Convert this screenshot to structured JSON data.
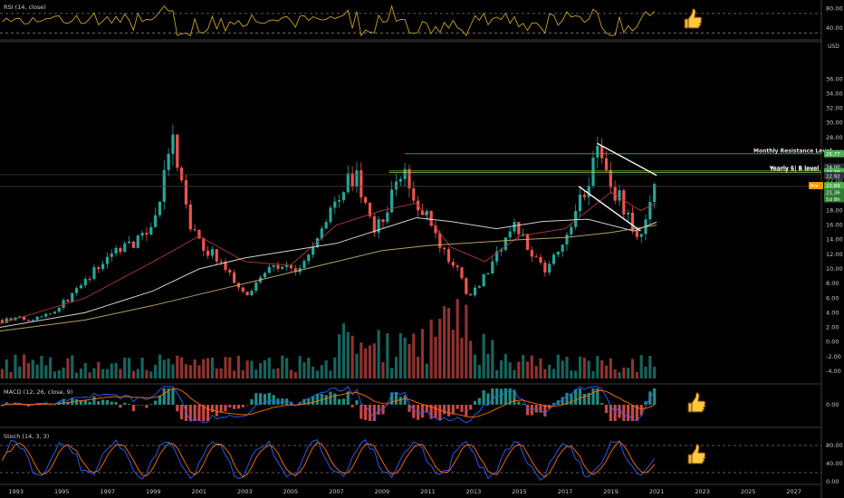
{
  "indicators": {
    "rsi_label": "RSI (14, close)",
    "macd_label": "MACD (12, 26, close, 9)",
    "stoch_label": "Stoch (14, 3, 3)"
  },
  "icons": {
    "thumbs": "thumbs-up-icon"
  },
  "colors": {
    "up": "#26a69a",
    "down": "#ef5350",
    "rsi": "#c9a227",
    "ma_red": "#b33a3a",
    "ma_white": "#e6e6e6",
    "ma_tan": "#c8b070",
    "macd": "#2962ff",
    "signal": "#ff6d00",
    "stoch_k": "#2962ff",
    "stoch_d": "#ff6d00",
    "res_line": "#4caf50",
    "badge_green": "#4caf50",
    "badge_orange": "#ff9800"
  },
  "chart_data": [
    {
      "name": "RSI (14, close)",
      "type": "line",
      "yticks": [
        80.0,
        40.0
      ],
      "ylim": [
        20,
        90
      ],
      "bands": [
        70,
        30
      ]
    },
    {
      "type": "candlestick",
      "unit": "USD",
      "ylim": [
        -5,
        40
      ],
      "yticks": [
        "36.00",
        "34.00",
        "32.00",
        "30.00",
        "28.00",
        "26.00",
        "24.00",
        "22.00",
        "20.00",
        "18.00",
        "16.00",
        "14.00",
        "12.00",
        "10.00",
        "8.00",
        "6.00",
        "4.00",
        "2.00",
        "0.00",
        "-2.00",
        "-4.00"
      ],
      "x_ticks": [
        "1993",
        "1995",
        "1997",
        "1999",
        "2001",
        "2003",
        "2005",
        "2007",
        "2009",
        "2011",
        "2013",
        "2015",
        "2017",
        "2019",
        "2021",
        "2023",
        "2025",
        "2027"
      ],
      "xlim": [
        1992.3,
        2028.2
      ],
      "price_path": [
        [
          1992.3,
          3.0
        ],
        [
          1993.5,
          3.2
        ],
        [
          1994.5,
          4.0
        ],
        [
          1995.5,
          6.5
        ],
        [
          1996.5,
          10.0
        ],
        [
          1997.5,
          13.0
        ],
        [
          1998.5,
          14.0
        ],
        [
          1999.2,
          18.0
        ],
        [
          1999.8,
          28.0
        ],
        [
          2000.2,
          22.0
        ],
        [
          2000.6,
          16.0
        ],
        [
          2001.0,
          13.5
        ],
        [
          2001.8,
          11.5
        ],
        [
          2002.5,
          8.5
        ],
        [
          2003.2,
          6.5
        ],
        [
          2003.8,
          9.5
        ],
        [
          2004.5,
          10.5
        ],
        [
          2005.3,
          9.5
        ],
        [
          2006.0,
          13.0
        ],
        [
          2006.8,
          18.0
        ],
        [
          2007.5,
          23.0
        ],
        [
          2008.0,
          22.0
        ],
        [
          2008.6,
          15.0
        ],
        [
          2009.0,
          16.5
        ],
        [
          2009.8,
          23.5
        ],
        [
          2010.4,
          20.0
        ],
        [
          2011.0,
          17.0
        ],
        [
          2011.6,
          12.5
        ],
        [
          2012.3,
          10.0
        ],
        [
          2012.8,
          6.0
        ],
        [
          2013.3,
          8.0
        ],
        [
          2014.0,
          12.0
        ],
        [
          2014.8,
          16.5
        ],
        [
          2015.4,
          13.0
        ],
        [
          2016.1,
          10.0
        ],
        [
          2016.8,
          12.5
        ],
        [
          2017.5,
          18.0
        ],
        [
          2018.0,
          22.0
        ],
        [
          2018.4,
          26.5
        ],
        [
          2018.8,
          22.5
        ],
        [
          2019.4,
          19.5
        ],
        [
          2019.9,
          16.0
        ],
        [
          2020.2,
          13.5
        ],
        [
          2020.6,
          17.5
        ],
        [
          2021.0,
          21.5
        ]
      ],
      "moving_averages": [
        {
          "points": [
            [
              1992.3,
              2.5
            ],
            [
              1996,
              6
            ],
            [
              1999,
              11
            ],
            [
              2001,
              14.5
            ],
            [
              2003,
              11
            ],
            [
              2005,
              10.5
            ],
            [
              2007,
              16
            ],
            [
              2009,
              18
            ],
            [
              2010.5,
              19
            ],
            [
              2012,
              13
            ],
            [
              2013.5,
              11
            ],
            [
              2015,
              14.5
            ],
            [
              2017,
              15.5
            ],
            [
              2019,
              20.5
            ],
            [
              2020.3,
              18
            ],
            [
              2021,
              19
            ]
          ]
        },
        {
          "points": [
            [
              1992.3,
              2.0
            ],
            [
              1996,
              4
            ],
            [
              1999,
              7
            ],
            [
              2001,
              10
            ],
            [
              2003,
              11.5
            ],
            [
              2005,
              12.5
            ],
            [
              2007,
              13.5
            ],
            [
              2009,
              15.5
            ],
            [
              2010.5,
              17
            ],
            [
              2012,
              16.5
            ],
            [
              2014,
              15.5
            ],
            [
              2016,
              16.5
            ],
            [
              2018,
              16.8
            ],
            [
              2020,
              15.2
            ],
            [
              2021,
              16.4
            ]
          ]
        },
        {
          "points": [
            [
              1992.3,
              1.5
            ],
            [
              1996,
              3
            ],
            [
              1999,
              5
            ],
            [
              2001,
              6.5
            ],
            [
              2003,
              8
            ],
            [
              2005,
              9.5
            ],
            [
              2007,
              11
            ],
            [
              2009,
              12.5
            ],
            [
              2011,
              13.2
            ],
            [
              2013,
              13.6
            ],
            [
              2015,
              14
            ],
            [
              2017,
              14.3
            ],
            [
              2019,
              15
            ],
            [
              2021,
              16
            ]
          ]
        }
      ],
      "trendlines": [
        {
          "from": [
            2018.4,
            27.2
          ],
          "to": [
            2021.0,
            22.8
          ]
        },
        {
          "from": [
            2017.6,
            21.3
          ],
          "to": [
            2020.3,
            15.2
          ]
        }
      ],
      "horizontal_levels": [
        {
          "label": "Monthly Resistance Level",
          "value": 25.77
        },
        {
          "label": "Yearly S| R level",
          "value": 23.2
        },
        {
          "label": "Yearly S| R level",
          "value": 23.4
        }
      ],
      "price_badges": [
        "25.77",
        "24.00",
        "23.39",
        "22.92",
        "Pre",
        "22.89",
        "21.36",
        "5d 8h"
      ]
    },
    {
      "name": "MACD (12, 26, close, 9)",
      "type": "histogram",
      "yticks": [
        "0.00"
      ]
    },
    {
      "name": "Stoch (14, 3, 3)",
      "type": "line",
      "yticks": [
        "80.00",
        "40.00",
        "0.00"
      ],
      "ylim": [
        0,
        100
      ]
    }
  ]
}
